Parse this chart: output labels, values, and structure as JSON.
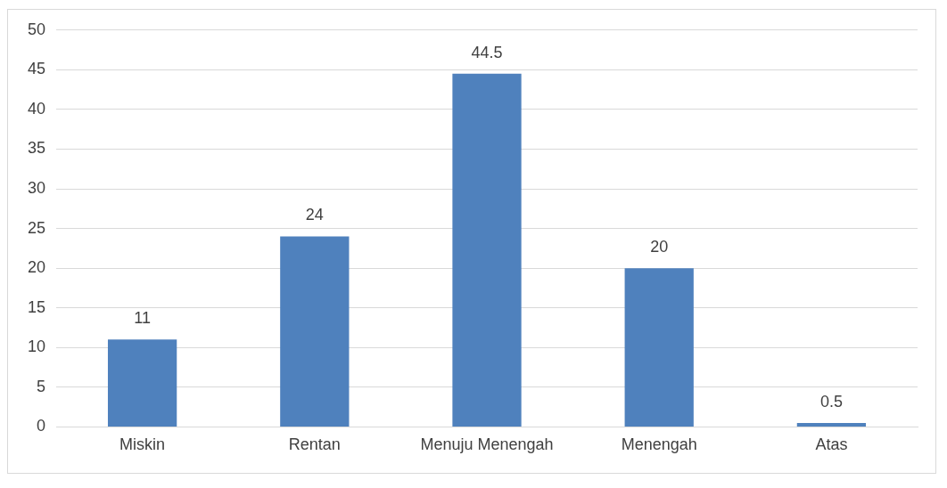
{
  "chart_data": {
    "type": "bar",
    "categories": [
      "Miskin",
      "Rentan",
      "Menuju Menengah",
      "Menengah",
      "Atas"
    ],
    "values": [
      11,
      24,
      44.5,
      20,
      0.5
    ],
    "color": "#4f81bd",
    "ylim": [
      0,
      50
    ],
    "yticks": [
      0,
      5,
      10,
      15,
      20,
      25,
      30,
      35,
      40,
      45,
      50
    ],
    "grid": "y",
    "data_labels": true
  }
}
